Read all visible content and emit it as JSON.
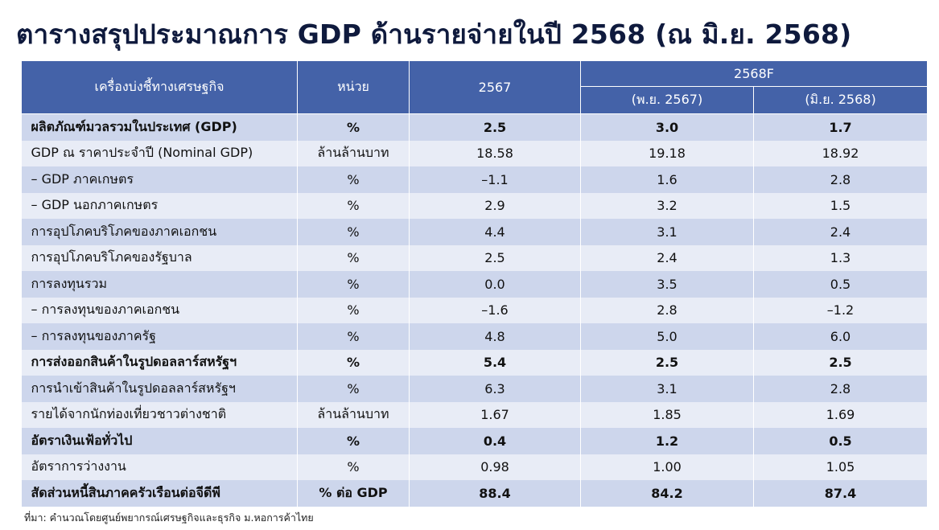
{
  "title": "ตารางสรุปประมาณการ GDP ด้านรายจ่ายในปี 2568 (ณ มิ.ย. 2568)",
  "headers": {
    "indicator": "เครื่องบ่งชี้ทางเศรษฐกิจ",
    "unit": "หน่วย",
    "year_actual": "2567",
    "forecast": "2568F",
    "forecast_prev": "(พ.ย. 2567)",
    "forecast_curr": "(มิ.ย. 2568)"
  },
  "rows": [
    {
      "label": "ผลิตภัณฑ์มวลรวมในประเทศ (GDP)",
      "unit": "%",
      "v2567": "2.5",
      "prev": "3.0",
      "curr": "1.7",
      "bold": true
    },
    {
      "label": "GDP ณ ราคาประจำปี (Nominal GDP)",
      "unit": "ล้านล้านบาท",
      "v2567": "18.58",
      "prev": "19.18",
      "curr": "18.92",
      "bold": false
    },
    {
      "label": " – GDP ภาคเกษตร",
      "unit": "%",
      "v2567": "–1.1",
      "prev": "1.6",
      "curr": "2.8",
      "bold": false
    },
    {
      "label": " – GDP นอกภาคเกษตร",
      "unit": "%",
      "v2567": "2.9",
      "prev": "3.2",
      "curr": "1.5",
      "bold": false
    },
    {
      "label": "การอุปโภคบริโภคของภาคเอกชน",
      "unit": "%",
      "v2567": "4.4",
      "prev": "3.1",
      "curr": "2.4",
      "bold": false
    },
    {
      "label": "การอุปโภคบริโภคของรัฐบาล",
      "unit": "%",
      "v2567": "2.5",
      "prev": "2.4",
      "curr": "1.3",
      "bold": false
    },
    {
      "label": "การลงทุนรวม",
      "unit": "%",
      "v2567": "0.0",
      "prev": "3.5",
      "curr": "0.5",
      "bold": false
    },
    {
      "label": " – การลงทุนของภาคเอกชน",
      "unit": "%",
      "v2567": "–1.6",
      "prev": "2.8",
      "curr": "–1.2",
      "bold": false
    },
    {
      "label": " – การลงทุนของภาครัฐ",
      "unit": "%",
      "v2567": "4.8",
      "prev": "5.0",
      "curr": "6.0",
      "bold": false
    },
    {
      "label": "การส่งออกสินค้าในรูปดอลลาร์สหรัฐฯ",
      "unit": "%",
      "v2567": "5.4",
      "prev": "2.5",
      "curr": "2.5",
      "bold": true
    },
    {
      "label": "การนำเข้าสินค้าในรูปดอลลาร์สหรัฐฯ",
      "unit": "%",
      "v2567": "6.3",
      "prev": "3.1",
      "curr": "2.8",
      "bold": false
    },
    {
      "label": "รายได้จากนักท่องเที่ยวชาวต่างชาติ",
      "unit": "ล้านล้านบาท",
      "v2567": "1.67",
      "prev": "1.85",
      "curr": "1.69",
      "bold": false
    },
    {
      "label": "อัตราเงินเฟ้อทั่วไป",
      "unit": "%",
      "v2567": "0.4",
      "prev": "1.2",
      "curr": "0.5",
      "bold": true
    },
    {
      "label": "อัตราการว่างงาน",
      "unit": "%",
      "v2567": "0.98",
      "prev": "1.00",
      "curr": "1.05",
      "bold": false
    },
    {
      "label": "สัดส่วนหนี้สินภาคครัวเรือนต่อจีดีพี",
      "unit": "% ต่อ GDP",
      "v2567": "88.4",
      "prev": "84.2",
      "curr": "87.4",
      "bold": true
    }
  ],
  "source": "ที่มา: คำนวณโดยศูนย์พยากรณ์เศรษฐกิจและธุรกิจ ม.หอการค้าไทย",
  "colors": {
    "header_bg": "#4462a8",
    "row_dark": "#cdd6ec",
    "row_light": "#e8ecf6",
    "title": "#0f1a3d"
  }
}
